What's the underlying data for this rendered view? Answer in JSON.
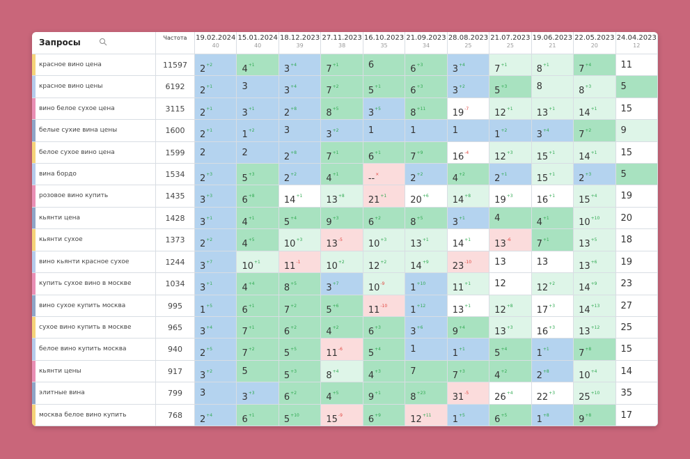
{
  "header": {
    "query": "Запросы",
    "freq": "Частота",
    "dates": [
      {
        "date": "19.02.2024",
        "count": 40
      },
      {
        "date": "15.01.2024",
        "count": 40
      },
      {
        "date": "18.12.2023",
        "count": 39
      },
      {
        "date": "27.11.2023",
        "count": 38
      },
      {
        "date": "16.10.2023",
        "count": 35
      },
      {
        "date": "21.09.2023",
        "count": 34
      },
      {
        "date": "28.08.2023",
        "count": 25
      },
      {
        "date": "21.07.2023",
        "count": 25
      },
      {
        "date": "19.06.2023",
        "count": 21
      },
      {
        "date": "22.05.2023",
        "count": 20
      },
      {
        "date": "24.04.2023",
        "count": 12
      }
    ]
  },
  "colors": {
    "b": "#b4d3ef",
    "g": "#a8e2c0",
    "l": "#def5e8",
    "w": "#ffffff",
    "p": "#fbdcdc",
    "up": "#2ea84f",
    "down": "#e0433c",
    "strip": [
      "#f5d37a",
      "#b5cbeb",
      "#e98fb4",
      "#8fa5c7"
    ]
  },
  "rows": [
    {
      "query": "красное вино цена",
      "freq": 11597,
      "cells": [
        {
          "v": 2,
          "d": "+2",
          "bg": "b"
        },
        {
          "v": 4,
          "d": "+1",
          "bg": "g"
        },
        {
          "v": 3,
          "d": "+4",
          "bg": "b"
        },
        {
          "v": 7,
          "d": "+1",
          "bg": "g"
        },
        {
          "v": 6,
          "bg": "g"
        },
        {
          "v": 6,
          "d": "+3",
          "bg": "g"
        },
        {
          "v": 3,
          "d": "+4",
          "bg": "b"
        },
        {
          "v": 7,
          "d": "+1",
          "bg": "l"
        },
        {
          "v": 8,
          "d": "+1",
          "bg": "l"
        },
        {
          "v": 7,
          "d": "+4",
          "bg": "g"
        },
        {
          "v": 11,
          "bg": "w"
        }
      ]
    },
    {
      "query": "красное вино цены",
      "freq": 6192,
      "cells": [
        {
          "v": 2,
          "d": "+1",
          "bg": "b"
        },
        {
          "v": 3,
          "bg": "b"
        },
        {
          "v": 3,
          "d": "+4",
          "bg": "b"
        },
        {
          "v": 7,
          "d": "+2",
          "bg": "g"
        },
        {
          "v": 5,
          "d": "+1",
          "bg": "g"
        },
        {
          "v": 6,
          "d": "+3",
          "bg": "g"
        },
        {
          "v": 3,
          "d": "+2",
          "bg": "b"
        },
        {
          "v": 5,
          "d": "+3",
          "bg": "g"
        },
        {
          "v": 8,
          "bg": "l"
        },
        {
          "v": 8,
          "d": "+3",
          "bg": "l"
        },
        {
          "v": 5,
          "bg": "g"
        }
      ]
    },
    {
      "query": "вино белое сухое цена",
      "freq": 3115,
      "cells": [
        {
          "v": 2,
          "d": "+1",
          "bg": "b"
        },
        {
          "v": 3,
          "d": "+1",
          "bg": "b"
        },
        {
          "v": 2,
          "d": "+8",
          "bg": "b"
        },
        {
          "v": 8,
          "d": "+5",
          "bg": "g"
        },
        {
          "v": 3,
          "d": "+5",
          "bg": "b"
        },
        {
          "v": 8,
          "d": "+11",
          "bg": "g"
        },
        {
          "v": 19,
          "d": "-7",
          "bg": "w"
        },
        {
          "v": 12,
          "d": "+1",
          "bg": "l"
        },
        {
          "v": 13,
          "d": "+1",
          "bg": "l"
        },
        {
          "v": 14,
          "d": "+1",
          "bg": "l"
        },
        {
          "v": 15,
          "bg": "w"
        }
      ]
    },
    {
      "query": "белые сухие вина цены",
      "freq": 1600,
      "cells": [
        {
          "v": 2,
          "d": "+1",
          "bg": "b"
        },
        {
          "v": 1,
          "d": "+2",
          "bg": "b"
        },
        {
          "v": 3,
          "bg": "b"
        },
        {
          "v": 3,
          "d": "+2",
          "bg": "b"
        },
        {
          "v": 1,
          "bg": "b"
        },
        {
          "v": 1,
          "bg": "b"
        },
        {
          "v": 1,
          "bg": "b"
        },
        {
          "v": 1,
          "d": "+2",
          "bg": "b"
        },
        {
          "v": 3,
          "d": "+4",
          "bg": "b"
        },
        {
          "v": 7,
          "d": "+2",
          "bg": "g"
        },
        {
          "v": 9,
          "bg": "l"
        }
      ]
    },
    {
      "query": "белое сухое вино цена",
      "freq": 1599,
      "cells": [
        {
          "v": 2,
          "bg": "b"
        },
        {
          "v": 2,
          "bg": "b"
        },
        {
          "v": 2,
          "d": "+8",
          "bg": "b"
        },
        {
          "v": 7,
          "d": "+1",
          "bg": "g"
        },
        {
          "v": 6,
          "d": "+1",
          "bg": "g"
        },
        {
          "v": 7,
          "d": "+9",
          "bg": "g"
        },
        {
          "v": 16,
          "d": "-4",
          "bg": "w"
        },
        {
          "v": 12,
          "d": "+3",
          "bg": "l"
        },
        {
          "v": 15,
          "d": "+1",
          "bg": "l"
        },
        {
          "v": 14,
          "d": "+1",
          "bg": "l"
        },
        {
          "v": 15,
          "bg": "w"
        }
      ]
    },
    {
      "query": "вина бордо",
      "freq": 1534,
      "cells": [
        {
          "v": 2,
          "d": "+3",
          "bg": "b"
        },
        {
          "v": 5,
          "d": "+3",
          "bg": "g"
        },
        {
          "v": 2,
          "d": "+2",
          "bg": "b"
        },
        {
          "v": 4,
          "d": "+1",
          "bg": "g"
        },
        {
          "v": "--",
          "d": "×",
          "bg": "p"
        },
        {
          "v": 2,
          "d": "+2",
          "bg": "b"
        },
        {
          "v": 4,
          "d": "+2",
          "bg": "g"
        },
        {
          "v": 2,
          "d": "+1",
          "bg": "b"
        },
        {
          "v": 15,
          "d": "+1",
          "bg": "l"
        },
        {
          "v": 2,
          "d": "+3",
          "bg": "b"
        },
        {
          "v": 5,
          "bg": "g"
        }
      ]
    },
    {
      "query": "розовое вино купить",
      "freq": 1435,
      "cells": [
        {
          "v": 3,
          "d": "+3",
          "bg": "b"
        },
        {
          "v": 6,
          "d": "+8",
          "bg": "g"
        },
        {
          "v": 14,
          "d": "+1",
          "bg": "w"
        },
        {
          "v": 13,
          "d": "+8",
          "bg": "l"
        },
        {
          "v": 21,
          "d": "+1",
          "bg": "p"
        },
        {
          "v": 20,
          "d": "+6",
          "bg": "w"
        },
        {
          "v": 14,
          "d": "+8",
          "bg": "l"
        },
        {
          "v": 19,
          "d": "+3",
          "bg": "w"
        },
        {
          "v": 16,
          "d": "+1",
          "bg": "w"
        },
        {
          "v": 15,
          "d": "+4",
          "bg": "l"
        },
        {
          "v": 19,
          "bg": "w"
        }
      ]
    },
    {
      "query": "кьянти цена",
      "freq": 1428,
      "cells": [
        {
          "v": 3,
          "d": "+1",
          "bg": "b"
        },
        {
          "v": 4,
          "d": "+1",
          "bg": "g"
        },
        {
          "v": 5,
          "d": "+4",
          "bg": "g"
        },
        {
          "v": 9,
          "d": "+3",
          "bg": "g"
        },
        {
          "v": 6,
          "d": "+2",
          "bg": "g"
        },
        {
          "v": 8,
          "d": "+5",
          "bg": "g"
        },
        {
          "v": 3,
          "d": "+1",
          "bg": "b"
        },
        {
          "v": 4,
          "bg": "g"
        },
        {
          "v": 4,
          "d": "+1",
          "bg": "g"
        },
        {
          "v": 10,
          "d": "+10",
          "bg": "l"
        },
        {
          "v": 20,
          "bg": "w"
        }
      ]
    },
    {
      "query": "кьянти сухое",
      "freq": 1373,
      "cells": [
        {
          "v": 2,
          "d": "+2",
          "bg": "b"
        },
        {
          "v": 4,
          "d": "+5",
          "bg": "g"
        },
        {
          "v": 10,
          "d": "+3",
          "bg": "l"
        },
        {
          "v": 13,
          "d": "-5",
          "bg": "p"
        },
        {
          "v": 10,
          "d": "+3",
          "bg": "l"
        },
        {
          "v": 13,
          "d": "+1",
          "bg": "l"
        },
        {
          "v": 14,
          "d": "+1",
          "bg": "w"
        },
        {
          "v": 13,
          "d": "-6",
          "bg": "p"
        },
        {
          "v": 7,
          "d": "+1",
          "bg": "g"
        },
        {
          "v": 13,
          "d": "+5",
          "bg": "l"
        },
        {
          "v": 18,
          "bg": "w"
        }
      ]
    },
    {
      "query": "вино кьянти красное сухое",
      "freq": 1244,
      "cells": [
        {
          "v": 3,
          "d": "+7",
          "bg": "b"
        },
        {
          "v": 10,
          "d": "+1",
          "bg": "l"
        },
        {
          "v": 11,
          "d": "-1",
          "bg": "p"
        },
        {
          "v": 10,
          "d": "+2",
          "bg": "l"
        },
        {
          "v": 12,
          "d": "+2",
          "bg": "l"
        },
        {
          "v": 14,
          "d": "+9",
          "bg": "l"
        },
        {
          "v": 23,
          "d": "-10",
          "bg": "p"
        },
        {
          "v": 13,
          "bg": "w"
        },
        {
          "v": 13,
          "bg": "w"
        },
        {
          "v": 13,
          "d": "+6",
          "bg": "l"
        },
        {
          "v": 19,
          "bg": "w"
        }
      ]
    },
    {
      "query": "купить сухое вино в москве",
      "freq": 1034,
      "cells": [
        {
          "v": 3,
          "d": "+1",
          "bg": "b"
        },
        {
          "v": 4,
          "d": "+4",
          "bg": "g"
        },
        {
          "v": 8,
          "d": "+5",
          "bg": "g"
        },
        {
          "v": 3,
          "d": "+7",
          "bg": "b"
        },
        {
          "v": 10,
          "d": "-9",
          "bg": "l"
        },
        {
          "v": 1,
          "d": "+10",
          "bg": "b"
        },
        {
          "v": 11,
          "d": "+1",
          "bg": "l"
        },
        {
          "v": 12,
          "bg": "w"
        },
        {
          "v": 12,
          "d": "+2",
          "bg": "l"
        },
        {
          "v": 14,
          "d": "+9",
          "bg": "l"
        },
        {
          "v": 23,
          "bg": "w"
        }
      ]
    },
    {
      "query": "вино сухое купить москва",
      "freq": 995,
      "cells": [
        {
          "v": 1,
          "d": "+5",
          "bg": "b"
        },
        {
          "v": 6,
          "d": "+1",
          "bg": "g"
        },
        {
          "v": 7,
          "d": "+2",
          "bg": "g"
        },
        {
          "v": 5,
          "d": "+6",
          "bg": "g"
        },
        {
          "v": 11,
          "d": "-10",
          "bg": "p"
        },
        {
          "v": 1,
          "d": "+12",
          "bg": "b"
        },
        {
          "v": 13,
          "d": "+1",
          "bg": "w"
        },
        {
          "v": 12,
          "d": "+8",
          "bg": "l"
        },
        {
          "v": 17,
          "d": "+3",
          "bg": "w"
        },
        {
          "v": 14,
          "d": "+13",
          "bg": "l"
        },
        {
          "v": 27,
          "bg": "w"
        }
      ]
    },
    {
      "query": "сухое вино купить в москве",
      "freq": 965,
      "cells": [
        {
          "v": 3,
          "d": "+4",
          "bg": "b"
        },
        {
          "v": 7,
          "d": "+1",
          "bg": "g"
        },
        {
          "v": 6,
          "d": "+2",
          "bg": "g"
        },
        {
          "v": 4,
          "d": "+2",
          "bg": "g"
        },
        {
          "v": 6,
          "d": "+3",
          "bg": "g"
        },
        {
          "v": 3,
          "d": "+6",
          "bg": "b"
        },
        {
          "v": 9,
          "d": "+4",
          "bg": "g"
        },
        {
          "v": 13,
          "d": "+3",
          "bg": "l"
        },
        {
          "v": 16,
          "d": "+3",
          "bg": "w"
        },
        {
          "v": 13,
          "d": "+12",
          "bg": "l"
        },
        {
          "v": 25,
          "bg": "w"
        }
      ]
    },
    {
      "query": "белое вино купить москва",
      "freq": 940,
      "cells": [
        {
          "v": 2,
          "d": "+5",
          "bg": "b"
        },
        {
          "v": 7,
          "d": "+2",
          "bg": "g"
        },
        {
          "v": 5,
          "d": "+5",
          "bg": "g"
        },
        {
          "v": 11,
          "d": "-6",
          "bg": "p"
        },
        {
          "v": 5,
          "d": "+4",
          "bg": "g"
        },
        {
          "v": 1,
          "bg": "b"
        },
        {
          "v": 1,
          "d": "+1",
          "bg": "b"
        },
        {
          "v": 5,
          "d": "+4",
          "bg": "g"
        },
        {
          "v": 1,
          "d": "+1",
          "bg": "b"
        },
        {
          "v": 7,
          "d": "+8",
          "bg": "g"
        },
        {
          "v": 15,
          "bg": "w"
        }
      ]
    },
    {
      "query": "кьянти цены",
      "freq": 917,
      "cells": [
        {
          "v": 3,
          "d": "+2",
          "bg": "b"
        },
        {
          "v": 5,
          "bg": "g"
        },
        {
          "v": 5,
          "d": "+3",
          "bg": "g"
        },
        {
          "v": 8,
          "d": "+4",
          "bg": "l"
        },
        {
          "v": 4,
          "d": "+3",
          "bg": "g"
        },
        {
          "v": 7,
          "bg": "g"
        },
        {
          "v": 7,
          "d": "+3",
          "bg": "g"
        },
        {
          "v": 4,
          "d": "+2",
          "bg": "g"
        },
        {
          "v": 2,
          "d": "+8",
          "bg": "b"
        },
        {
          "v": 10,
          "d": "+4",
          "bg": "l"
        },
        {
          "v": 14,
          "bg": "w"
        }
      ]
    },
    {
      "query": "элитные вина",
      "freq": 799,
      "cells": [
        {
          "v": 3,
          "bg": "b"
        },
        {
          "v": 3,
          "d": "+3",
          "bg": "b"
        },
        {
          "v": 6,
          "d": "+2",
          "bg": "g"
        },
        {
          "v": 4,
          "d": "+5",
          "bg": "g"
        },
        {
          "v": 9,
          "d": "+1",
          "bg": "g"
        },
        {
          "v": 8,
          "d": "+23",
          "bg": "g"
        },
        {
          "v": 31,
          "d": "-5",
          "bg": "p"
        },
        {
          "v": 26,
          "d": "+4",
          "bg": "w"
        },
        {
          "v": 22,
          "d": "+3",
          "bg": "w"
        },
        {
          "v": 25,
          "d": "+10",
          "bg": "l"
        },
        {
          "v": 35,
          "bg": "w"
        }
      ]
    },
    {
      "query": "москва белое вино купить",
      "freq": 768,
      "cells": [
        {
          "v": 2,
          "d": "+4",
          "bg": "b"
        },
        {
          "v": 6,
          "d": "+1",
          "bg": "g"
        },
        {
          "v": 5,
          "d": "+10",
          "bg": "g"
        },
        {
          "v": 15,
          "d": "-9",
          "bg": "p"
        },
        {
          "v": 6,
          "d": "+9",
          "bg": "g"
        },
        {
          "v": 12,
          "d": "+11",
          "bg": "p"
        },
        {
          "v": 1,
          "d": "+5",
          "bg": "b"
        },
        {
          "v": 6,
          "d": "+5",
          "bg": "g"
        },
        {
          "v": 1,
          "d": "+8",
          "bg": "b"
        },
        {
          "v": 9,
          "d": "+8",
          "bg": "g"
        },
        {
          "v": 17,
          "bg": "w"
        }
      ]
    }
  ]
}
